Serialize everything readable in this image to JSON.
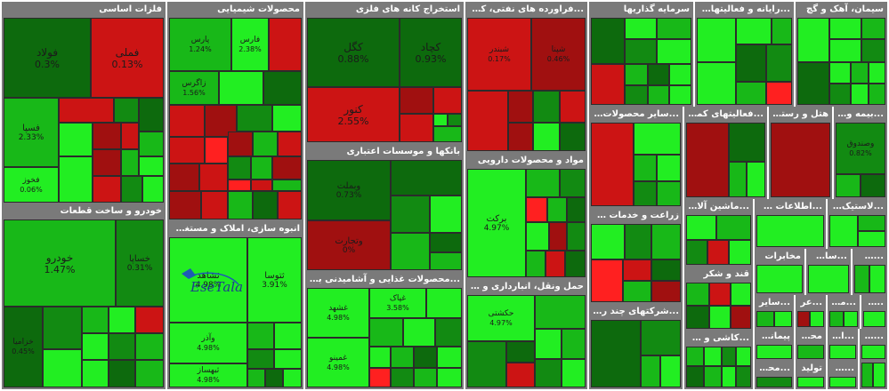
{
  "logo": {
    "text": "EseTala"
  },
  "sectors": {
    "s1": "فلزات اساسی",
    "s2": "خودرو و ساخت قطعات",
    "s3": "محصولات شیمیایی",
    "s4": "انبوه سازی، املاک و مستغلات",
    "s5": "استخراج کانه های فلزی",
    "s6": "بانکها و موسسات اعتباری",
    "s7": "...محصولات غذایی و آشامیدنی به جز قند",
    "s8": "...فراورده های نفتی، کک و سو",
    "s9": "مواد و محصولات دارویی",
    "s10": "حمل ونقل، انبارداری و ارتباطات",
    "s11": "سرمایه گذاریها",
    "s12": "...رایانه و فعالیتهای وابـ",
    "s13": "سیمان، آهک و گچ",
    "s14": "...سایر محصولات کانی",
    "s15": "...فعالیتهای کمکی به",
    "s16": "هتل و رستوران",
    "s17": "...بیمه وصندو",
    "s18": "زراعت و خدمات وابسته",
    "s19": "...شرکتهای چند رشته ا",
    "s20": "...ماشین آلات و د",
    "s21": "...اطلاعات و ارتباط",
    "s22": "...لاستیک و پلا",
    "s23": "مخابرات",
    "s24": "...ساخت د",
    "s25": "...ساخت",
    "s26": "قند و شکر",
    "s27": "...کاشی و سرام",
    "s28": "...سایر",
    "s29": "...عر",
    "s30": "...ماش",
    "s31": "...حرا",
    "s32": "پیمانکار",
    "s33": "محصو",
    "s34": "...اس",
    "s35": "...اس",
    "s36": "...محصولا",
    "s37": "تولید",
    "s38": "...حمو"
  },
  "tiles": {
    "foolad": {
      "name": "فولاد",
      "pct": "0.3%"
    },
    "fameli": {
      "name": "فملی",
      "pct": "0.13%"
    },
    "esfahan": {
      "name": "فسپا",
      "pct": "2.33%"
    },
    "fevol": {
      "name": "فخوز",
      "pct": "0.06%"
    },
    "khodro": {
      "name": "خودرو",
      "pct": "1.47%"
    },
    "khsapa": {
      "name": "خساپا",
      "pct": "0.31%"
    },
    "khzamia": {
      "name": "خزامیا",
      "pct": "0.45%"
    },
    "shpna": {
      "name": "پارس",
      "pct": "1.24%"
    },
    "shiran": {
      "name": "فارس",
      "pct": "2.38%"
    },
    "zag": {
      "name": "زاگرس",
      "pct": "1.56%"
    },
    "atlas": {
      "name": "ثشاهد",
      "pct": "4.98%"
    },
    "tousa": {
      "name": "ثتوسا",
      "pct": "3.91%"
    },
    "vatiran": {
      "name": "وآذر",
      "pct": "4.98%"
    },
    "sakhteman": {
      "name": "ثبهساز",
      "pct": "4.98%"
    },
    "kegol": {
      "name": "کگل",
      "pct": "0.88%"
    },
    "kchad": {
      "name": "کچاد",
      "pct": "0.93%"
    },
    "ksharq": {
      "name": "کنور",
      "pct": "2.55%"
    },
    "vebmelat": {
      "name": "وبملت",
      "pct": "0.73%"
    },
    "vtejarat": {
      "name": "وتجارت",
      "pct": "0%"
    },
    "ghshahd": {
      "name": "غشهد",
      "pct": "4.98%"
    },
    "ghpak": {
      "name": "غپاک",
      "pct": "3.58%"
    },
    "ghmino": {
      "name": "غمینو",
      "pct": "4.98%"
    },
    "shbandar": {
      "name": "شبندر",
      "pct": "0.17%"
    },
    "shpna2": {
      "name": "شپنا",
      "pct": "0.46%"
    },
    "barkat": {
      "name": "برکت",
      "pct": "4.97%"
    },
    "hkeshti": {
      "name": "حکشتی",
      "pct": "4.97%"
    },
    "vsadid": {
      "name": "وصندوق",
      "pct": "0.82%"
    }
  }
}
